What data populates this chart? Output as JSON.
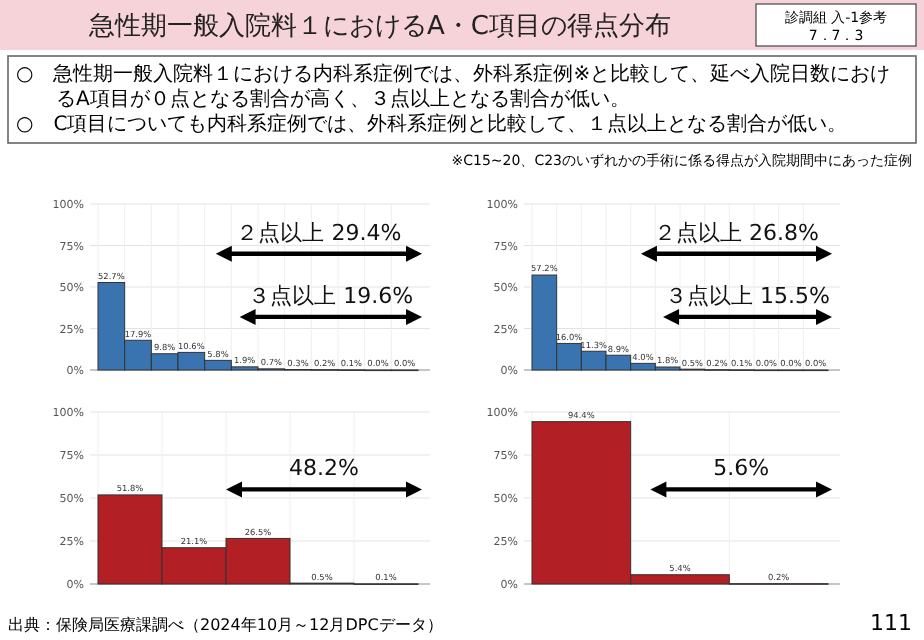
{
  "chart_data": [
    {
      "type": "other",
      "title": "急性期一般入院料１におけるA・C項目の得点分布",
      "annotations": [
        "診調組 入-1参考",
        "7．7．3",
        "○　急性期一般入院料１における内科系症例では、外科系症例※と比較して、延べ入院日数におけるA項目が０点となる割合が高く、３点以上となる割合が低い。",
        "○　C項目についても内科系症例では、外科系症例と比較して、１点以上となる割合が低い。",
        "※C15~20、C23のいずれかの手術に係る得点が入院期間中にあった症例",
        "出典：保険局医療課調べ（2024年10月～12月DPCデータ）",
        "111"
      ]
    },
    {
      "type": "bar",
      "categories": [
        null,
        null,
        null,
        null,
        null,
        null,
        null,
        null,
        null,
        null,
        null,
        null
      ],
      "values": [
        52.7,
        17.9,
        9.8,
        10.6,
        5.8,
        1.9,
        0.7,
        0.3,
        0.2,
        0.1,
        0.0,
        0.0
      ],
      "value_labels": [
        "52.7%",
        "17.9%",
        "9.8%",
        "10.6%",
        "5.8%",
        "1.9%",
        "0.7%",
        "0.3%",
        "0.2%",
        "0.1%",
        "0.0%",
        "0.0%"
      ],
      "color": "#3a74b0",
      "ylim": [
        0,
        100
      ],
      "yticks": [
        {
          "value": 0,
          "label": "0%"
        },
        {
          "value": 25,
          "label": "25%"
        },
        {
          "value": 50,
          "label": "50%"
        },
        {
          "value": 75,
          "label": "75%"
        },
        {
          "value": 100,
          "label": "100%"
        }
      ],
      "grid": true,
      "annotations": [
        "２点以上 29.4%",
        "３点以上 19.6%"
      ]
    },
    {
      "type": "bar",
      "categories": [
        null,
        null,
        null,
        null,
        null,
        null,
        null,
        null,
        null,
        null,
        null,
        null
      ],
      "values": [
        57.2,
        16.0,
        11.3,
        8.9,
        4.0,
        1.8,
        0.5,
        0.2,
        0.1,
        0.0,
        0.0,
        0.0
      ],
      "value_labels": [
        "57.2%",
        "16.0%",
        "11.3%",
        "8.9%",
        "4.0%",
        "1.8%",
        "0.5%",
        "0.2%",
        "0.1%",
        "0.0%",
        "0.0%",
        "0.0%"
      ],
      "color": "#3a74b0",
      "ylim": [
        0,
        100
      ],
      "yticks": [
        {
          "value": 0,
          "label": "0%"
        },
        {
          "value": 25,
          "label": "25%"
        },
        {
          "value": 50,
          "label": "50%"
        },
        {
          "value": 75,
          "label": "75%"
        },
        {
          "value": 100,
          "label": "100%"
        }
      ],
      "grid": true,
      "annotations": [
        "２点以上 26.8%",
        "３点以上 15.5%"
      ]
    },
    {
      "type": "bar",
      "categories": [
        null,
        null,
        null,
        null,
        null
      ],
      "values": [
        51.8,
        21.1,
        26.5,
        0.5,
        0.1
      ],
      "value_labels": [
        "51.8%",
        "21.1%",
        "26.5%",
        "0.5%",
        "0.1%"
      ],
      "color": "#b21f24",
      "ylim": [
        0,
        100
      ],
      "yticks": [
        {
          "value": 0,
          "label": "0%"
        },
        {
          "value": 25,
          "label": "25%"
        },
        {
          "value": 50,
          "label": "50%"
        },
        {
          "value": 75,
          "label": "75%"
        },
        {
          "value": 100,
          "label": "100%"
        }
      ],
      "grid": true,
      "annotations": [
        "48.2%"
      ]
    },
    {
      "type": "bar",
      "categories": [
        null,
        null,
        null
      ],
      "values": [
        94.4,
        5.4,
        0.2
      ],
      "value_labels": [
        "94.4%",
        "5.4%",
        "0.2%"
      ],
      "color": "#b21f24",
      "ylim": [
        0,
        100
      ],
      "yticks": [
        {
          "value": 0,
          "label": "0%"
        },
        {
          "value": 25,
          "label": "25%"
        },
        {
          "value": 50,
          "label": "50%"
        },
        {
          "value": 75,
          "label": "75%"
        },
        {
          "value": 100,
          "label": "100%"
        }
      ],
      "grid": true,
      "annotations": [
        "5.6%"
      ]
    }
  ]
}
